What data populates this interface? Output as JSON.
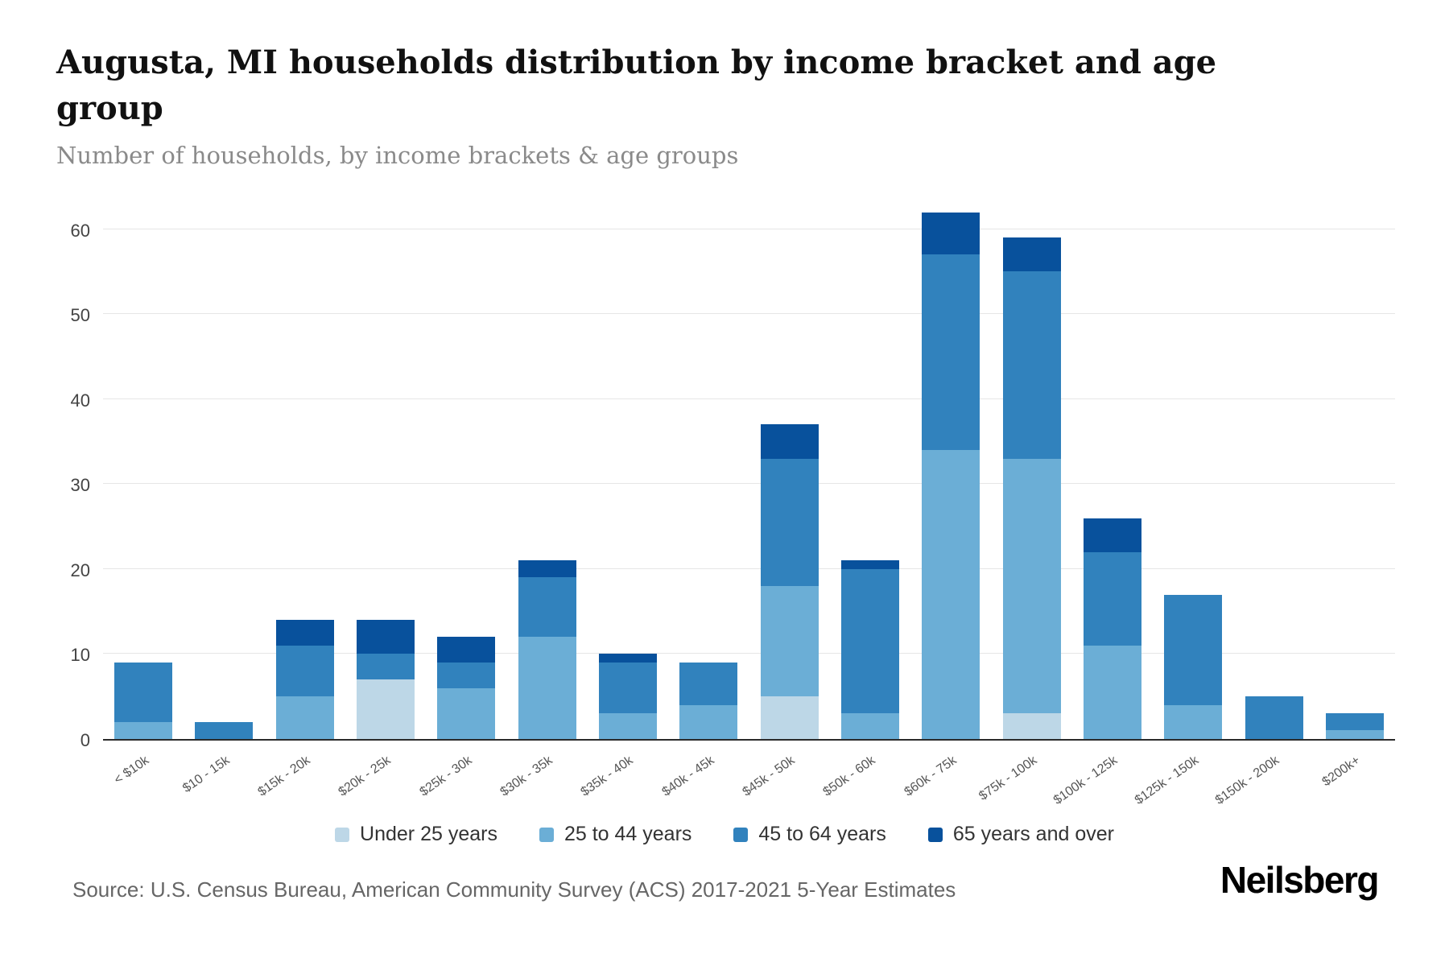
{
  "title": "Augusta, MI households distribution by income bracket and age group",
  "subtitle": "Number of households, by income brackets & age groups",
  "source": "Source: U.S. Census Bureau, American Community Survey (ACS) 2017-2021 5-Year Estimates",
  "logo": "Neilsberg",
  "chart_data": {
    "type": "bar",
    "stacked": true,
    "title": "Augusta, MI households distribution by income bracket and age group",
    "subtitle": "Number of households, by income brackets & age groups",
    "xlabel": "",
    "ylabel": "",
    "grid": true,
    "legend_position": "bottom",
    "yticks": [
      0,
      10,
      20,
      30,
      40,
      50,
      60
    ],
    "ymax": 63,
    "categories": [
      "< $10k",
      "$10 - 15k",
      "$15k - 20k",
      "$20k - 25k",
      "$25k - 30k",
      "$30k - 35k",
      "$35k - 40k",
      "$40k - 45k",
      "$45k - 50k",
      "$50k - 60k",
      "$60k - 75k",
      "$75k - 100k",
      "$100k - 125k",
      "$125k - 150k",
      "$150k - 200k",
      "$200k+"
    ],
    "series": [
      {
        "name": "Under 25 years",
        "color": "#bdd7e7",
        "values": [
          0,
          0,
          0,
          7,
          0,
          0,
          0,
          0,
          5,
          0,
          0,
          3,
          0,
          0,
          0,
          0
        ]
      },
      {
        "name": "25 to 44 years",
        "color": "#6baed6",
        "values": [
          2,
          0,
          5,
          0,
          6,
          12,
          3,
          4,
          13,
          3,
          34,
          30,
          11,
          4,
          0,
          1
        ]
      },
      {
        "name": "45 to 64 years",
        "color": "#3182bd",
        "values": [
          7,
          2,
          6,
          3,
          3,
          7,
          6,
          5,
          15,
          17,
          23,
          22,
          11,
          13,
          5,
          2
        ]
      },
      {
        "name": "65 years and over",
        "color": "#08519c",
        "values": [
          0,
          0,
          3,
          4,
          3,
          2,
          1,
          0,
          4,
          1,
          5,
          4,
          4,
          0,
          0,
          0
        ]
      }
    ],
    "totals": [
      9,
      2,
      14,
      14,
      12,
      21,
      10,
      9,
      37,
      21,
      62,
      59,
      26,
      17,
      5,
      3
    ]
  }
}
